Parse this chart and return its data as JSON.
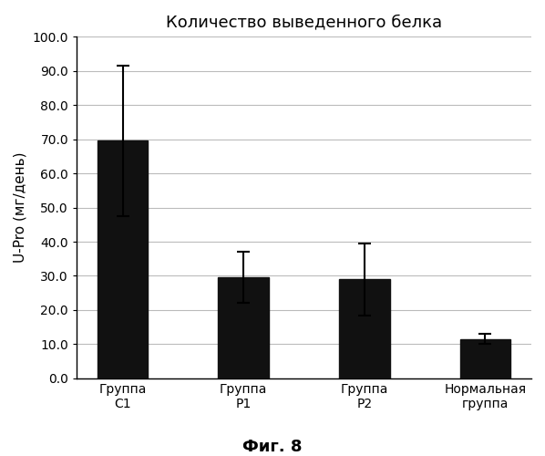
{
  "title": "Количество выведенного белка",
  "xlabel": "",
  "ylabel": "U-Pro (мг/день)",
  "categories": [
    "Группа\nC1",
    "Группа\nP1",
    "Группа\nP2",
    "Нормальная\nгруппа"
  ],
  "values": [
    69.5,
    29.5,
    29.0,
    11.5
  ],
  "errors": [
    22.0,
    7.5,
    10.5,
    1.5
  ],
  "bar_color": "#111111",
  "ylim": [
    0,
    100.0
  ],
  "yticks": [
    0.0,
    10.0,
    20.0,
    30.0,
    40.0,
    50.0,
    60.0,
    70.0,
    80.0,
    90.0,
    100.0
  ],
  "caption": "Фиг. 8",
  "bar_width": 0.42,
  "background_color": "#ffffff",
  "grid_color": "#bbbbbb",
  "title_fontsize": 13,
  "axis_label_fontsize": 11,
  "tick_fontsize": 10,
  "caption_fontsize": 13
}
